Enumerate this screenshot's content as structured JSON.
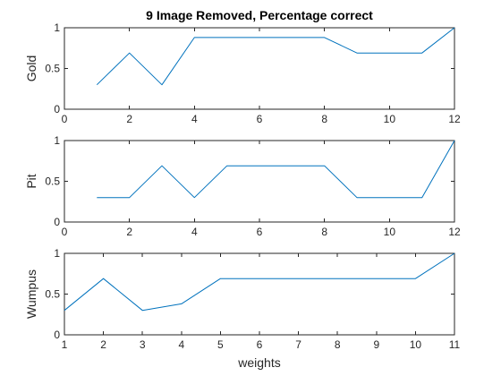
{
  "chart_data": {
    "title": "9 Image Removed, Percentage correct",
    "colors": {
      "line": "#0072BD",
      "axes": "#262626",
      "background": "#ffffff"
    },
    "subplots": [
      {
        "type": "line",
        "ylabel": "Gold",
        "xlabel": "",
        "xlim": [
          0,
          12
        ],
        "ylim": [
          0,
          1
        ],
        "xticks": [
          0,
          2,
          4,
          6,
          8,
          10,
          12
        ],
        "yticks": [
          0,
          0.5,
          1
        ],
        "x": [
          1,
          2,
          3,
          4,
          5,
          6,
          7,
          8,
          9,
          10,
          11,
          12
        ],
        "y": [
          0.3,
          0.69,
          0.3,
          0.88,
          0.88,
          0.88,
          0.88,
          0.88,
          0.69,
          0.69,
          0.69,
          1.0
        ],
        "grid": false
      },
      {
        "type": "line",
        "ylabel": "Pit",
        "xlabel": "",
        "xlim": [
          0,
          12
        ],
        "ylim": [
          0,
          1
        ],
        "xticks": [
          0,
          2,
          4,
          6,
          8,
          10,
          12
        ],
        "yticks": [
          0,
          0.5,
          1
        ],
        "x": [
          1,
          2,
          3,
          4,
          5,
          6,
          7,
          8,
          9,
          10,
          11,
          12
        ],
        "y": [
          0.3,
          0.3,
          0.69,
          0.3,
          0.69,
          0.69,
          0.69,
          0.69,
          0.3,
          0.3,
          0.3,
          1.0
        ],
        "grid": false
      },
      {
        "type": "line",
        "ylabel": "Wumpus",
        "xlabel": "weights",
        "xlim": [
          1,
          11
        ],
        "ylim": [
          0,
          1
        ],
        "xticks": [
          1,
          2,
          3,
          4,
          5,
          6,
          7,
          8,
          9,
          10,
          11
        ],
        "yticks": [
          0,
          0.5,
          1
        ],
        "x": [
          1,
          2,
          3,
          4,
          5,
          6,
          7,
          8,
          9,
          10,
          11
        ],
        "y": [
          0.3,
          0.69,
          0.3,
          0.38,
          0.69,
          0.69,
          0.69,
          0.69,
          0.69,
          0.69,
          1.0
        ],
        "grid": false
      }
    ]
  }
}
